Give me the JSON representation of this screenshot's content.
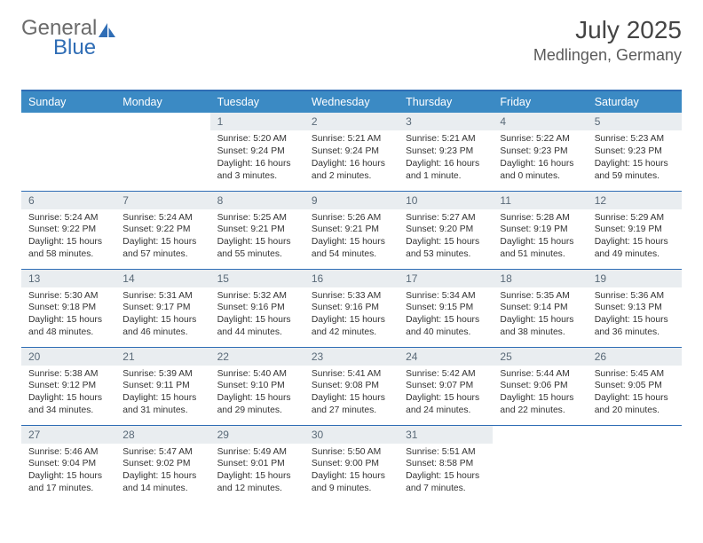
{
  "brand": {
    "part1": "General",
    "part2": "Blue"
  },
  "title": "July 2025",
  "location": "Medlingen, Germany",
  "colors": {
    "header_bg": "#3b8ac4",
    "header_border": "#2f6db5",
    "daynum_bg": "#e9edf0",
    "daynum_color": "#5a6a78",
    "text": "#333333",
    "brand_gray": "#6b6b6b",
    "brand_blue": "#2f6db5",
    "background": "#ffffff"
  },
  "typography": {
    "month_fontsize": 28,
    "location_fontsize": 18,
    "dayheader_fontsize": 12.5,
    "daynum_fontsize": 12,
    "body_fontsize": 10.3
  },
  "day_headers": [
    "Sunday",
    "Monday",
    "Tuesday",
    "Wednesday",
    "Thursday",
    "Friday",
    "Saturday"
  ],
  "weeks": [
    [
      {
        "empty": true
      },
      {
        "empty": true
      },
      {
        "n": "1",
        "sunrise": "Sunrise: 5:20 AM",
        "sunset": "Sunset: 9:24 PM",
        "daylight": "Daylight: 16 hours and 3 minutes."
      },
      {
        "n": "2",
        "sunrise": "Sunrise: 5:21 AM",
        "sunset": "Sunset: 9:24 PM",
        "daylight": "Daylight: 16 hours and 2 minutes."
      },
      {
        "n": "3",
        "sunrise": "Sunrise: 5:21 AM",
        "sunset": "Sunset: 9:23 PM",
        "daylight": "Daylight: 16 hours and 1 minute."
      },
      {
        "n": "4",
        "sunrise": "Sunrise: 5:22 AM",
        "sunset": "Sunset: 9:23 PM",
        "daylight": "Daylight: 16 hours and 0 minutes."
      },
      {
        "n": "5",
        "sunrise": "Sunrise: 5:23 AM",
        "sunset": "Sunset: 9:23 PM",
        "daylight": "Daylight: 15 hours and 59 minutes."
      }
    ],
    [
      {
        "n": "6",
        "sunrise": "Sunrise: 5:24 AM",
        "sunset": "Sunset: 9:22 PM",
        "daylight": "Daylight: 15 hours and 58 minutes."
      },
      {
        "n": "7",
        "sunrise": "Sunrise: 5:24 AM",
        "sunset": "Sunset: 9:22 PM",
        "daylight": "Daylight: 15 hours and 57 minutes."
      },
      {
        "n": "8",
        "sunrise": "Sunrise: 5:25 AM",
        "sunset": "Sunset: 9:21 PM",
        "daylight": "Daylight: 15 hours and 55 minutes."
      },
      {
        "n": "9",
        "sunrise": "Sunrise: 5:26 AM",
        "sunset": "Sunset: 9:21 PM",
        "daylight": "Daylight: 15 hours and 54 minutes."
      },
      {
        "n": "10",
        "sunrise": "Sunrise: 5:27 AM",
        "sunset": "Sunset: 9:20 PM",
        "daylight": "Daylight: 15 hours and 53 minutes."
      },
      {
        "n": "11",
        "sunrise": "Sunrise: 5:28 AM",
        "sunset": "Sunset: 9:19 PM",
        "daylight": "Daylight: 15 hours and 51 minutes."
      },
      {
        "n": "12",
        "sunrise": "Sunrise: 5:29 AM",
        "sunset": "Sunset: 9:19 PM",
        "daylight": "Daylight: 15 hours and 49 minutes."
      }
    ],
    [
      {
        "n": "13",
        "sunrise": "Sunrise: 5:30 AM",
        "sunset": "Sunset: 9:18 PM",
        "daylight": "Daylight: 15 hours and 48 minutes."
      },
      {
        "n": "14",
        "sunrise": "Sunrise: 5:31 AM",
        "sunset": "Sunset: 9:17 PM",
        "daylight": "Daylight: 15 hours and 46 minutes."
      },
      {
        "n": "15",
        "sunrise": "Sunrise: 5:32 AM",
        "sunset": "Sunset: 9:16 PM",
        "daylight": "Daylight: 15 hours and 44 minutes."
      },
      {
        "n": "16",
        "sunrise": "Sunrise: 5:33 AM",
        "sunset": "Sunset: 9:16 PM",
        "daylight": "Daylight: 15 hours and 42 minutes."
      },
      {
        "n": "17",
        "sunrise": "Sunrise: 5:34 AM",
        "sunset": "Sunset: 9:15 PM",
        "daylight": "Daylight: 15 hours and 40 minutes."
      },
      {
        "n": "18",
        "sunrise": "Sunrise: 5:35 AM",
        "sunset": "Sunset: 9:14 PM",
        "daylight": "Daylight: 15 hours and 38 minutes."
      },
      {
        "n": "19",
        "sunrise": "Sunrise: 5:36 AM",
        "sunset": "Sunset: 9:13 PM",
        "daylight": "Daylight: 15 hours and 36 minutes."
      }
    ],
    [
      {
        "n": "20",
        "sunrise": "Sunrise: 5:38 AM",
        "sunset": "Sunset: 9:12 PM",
        "daylight": "Daylight: 15 hours and 34 minutes."
      },
      {
        "n": "21",
        "sunrise": "Sunrise: 5:39 AM",
        "sunset": "Sunset: 9:11 PM",
        "daylight": "Daylight: 15 hours and 31 minutes."
      },
      {
        "n": "22",
        "sunrise": "Sunrise: 5:40 AM",
        "sunset": "Sunset: 9:10 PM",
        "daylight": "Daylight: 15 hours and 29 minutes."
      },
      {
        "n": "23",
        "sunrise": "Sunrise: 5:41 AM",
        "sunset": "Sunset: 9:08 PM",
        "daylight": "Daylight: 15 hours and 27 minutes."
      },
      {
        "n": "24",
        "sunrise": "Sunrise: 5:42 AM",
        "sunset": "Sunset: 9:07 PM",
        "daylight": "Daylight: 15 hours and 24 minutes."
      },
      {
        "n": "25",
        "sunrise": "Sunrise: 5:44 AM",
        "sunset": "Sunset: 9:06 PM",
        "daylight": "Daylight: 15 hours and 22 minutes."
      },
      {
        "n": "26",
        "sunrise": "Sunrise: 5:45 AM",
        "sunset": "Sunset: 9:05 PM",
        "daylight": "Daylight: 15 hours and 20 minutes."
      }
    ],
    [
      {
        "n": "27",
        "sunrise": "Sunrise: 5:46 AM",
        "sunset": "Sunset: 9:04 PM",
        "daylight": "Daylight: 15 hours and 17 minutes."
      },
      {
        "n": "28",
        "sunrise": "Sunrise: 5:47 AM",
        "sunset": "Sunset: 9:02 PM",
        "daylight": "Daylight: 15 hours and 14 minutes."
      },
      {
        "n": "29",
        "sunrise": "Sunrise: 5:49 AM",
        "sunset": "Sunset: 9:01 PM",
        "daylight": "Daylight: 15 hours and 12 minutes."
      },
      {
        "n": "30",
        "sunrise": "Sunrise: 5:50 AM",
        "sunset": "Sunset: 9:00 PM",
        "daylight": "Daylight: 15 hours and 9 minutes."
      },
      {
        "n": "31",
        "sunrise": "Sunrise: 5:51 AM",
        "sunset": "Sunset: 8:58 PM",
        "daylight": "Daylight: 15 hours and 7 minutes."
      },
      {
        "empty": true
      },
      {
        "empty": true
      }
    ]
  ]
}
